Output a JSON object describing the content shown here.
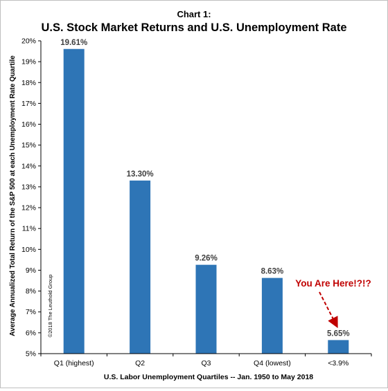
{
  "chart_data": {
    "type": "bar",
    "supertitle": "Chart 1:",
    "title": "U.S. Stock Market Returns and U.S. Unemployment Rate",
    "xlabel": "U.S. Labor Unemployment Quartiles -- Jan. 1950 to May 2018",
    "ylabel": "Average Annualized Total Return of the S&P 500 at each Unemployment Rate Quartile",
    "categories": [
      "Q1 (highest)",
      "Q2",
      "Q3",
      "Q4 (lowest)",
      "<3.9%"
    ],
    "values": [
      19.61,
      13.3,
      9.26,
      8.63,
      5.65
    ],
    "data_labels": [
      "19.61%",
      "13.30%",
      "9.26%",
      "8.63%",
      "5.65%"
    ],
    "ylim": [
      5,
      20
    ],
    "yticks": [
      5,
      6,
      7,
      8,
      9,
      10,
      11,
      12,
      13,
      14,
      15,
      16,
      17,
      18,
      19,
      20
    ],
    "ytick_labels": [
      "5%",
      "6%",
      "7%",
      "8%",
      "9%",
      "10%",
      "11%",
      "12%",
      "13%",
      "14%",
      "15%",
      "16%",
      "17%",
      "18%",
      "19%",
      "20%"
    ],
    "grid": false,
    "bar_color": "#2e75b6",
    "annotation": {
      "text": "You Are Here!?!?",
      "color": "#c00000",
      "target_category": "<3.9%"
    },
    "watermark": "©2018 The Leuthold Group"
  }
}
